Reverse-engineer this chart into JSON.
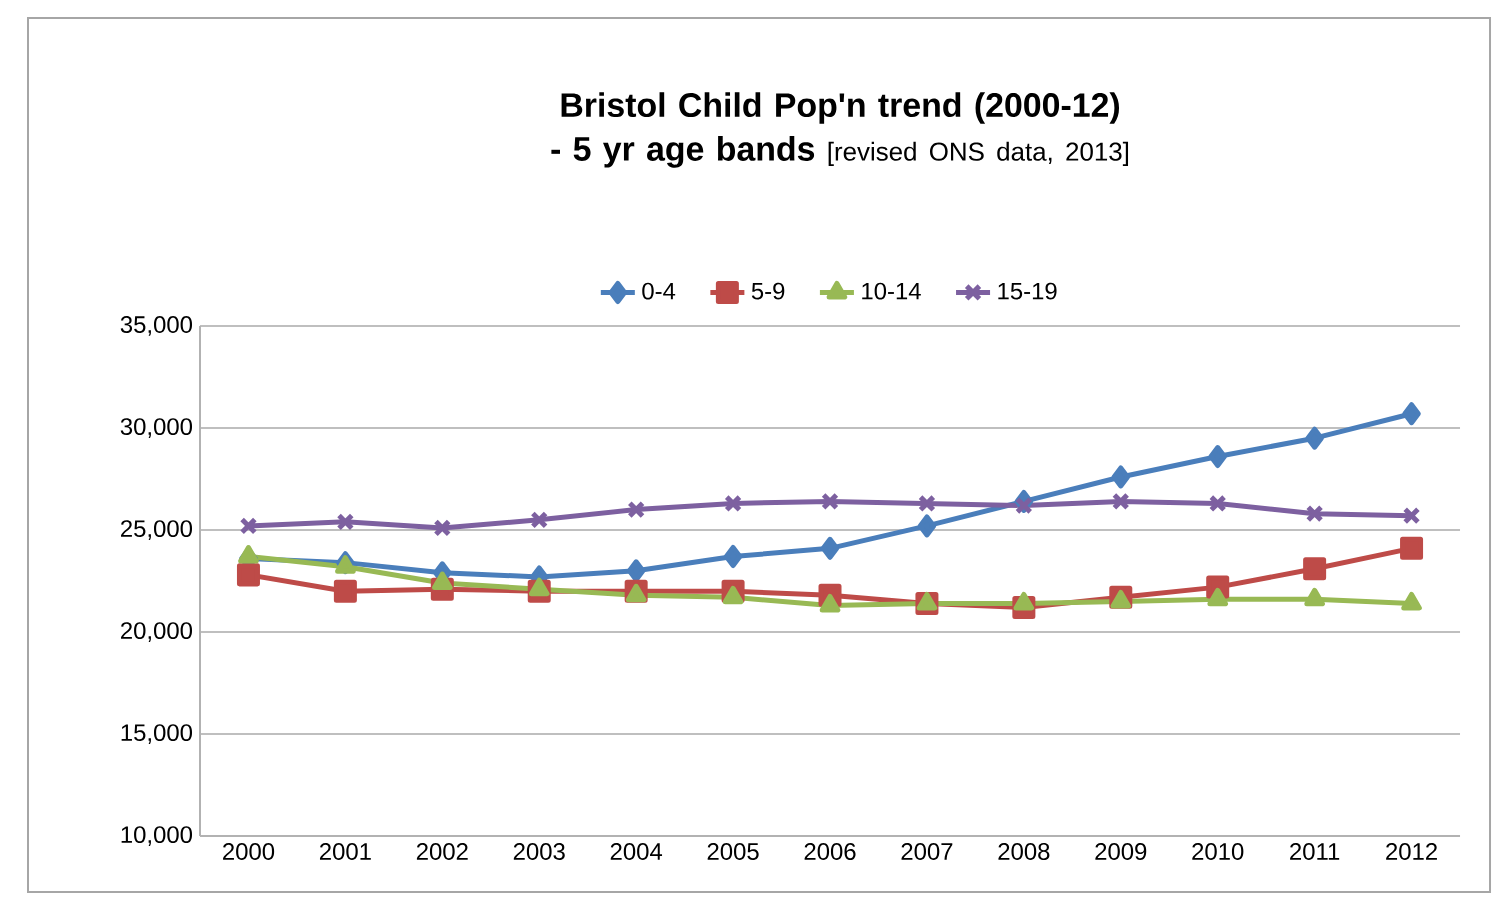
{
  "chart_data": {
    "type": "line",
    "title": "Bristol Child Pop'n trend (2000-12) - 5 yr age bands",
    "subtitle": "[revised ONS data, 2013]",
    "categories": [
      "2000",
      "2001",
      "2002",
      "2003",
      "2004",
      "2005",
      "2006",
      "2007",
      "2008",
      "2009",
      "2010",
      "2011",
      "2012"
    ],
    "series": [
      {
        "name": "0-4",
        "color": "#4a7ebb",
        "marker": "diamond",
        "values": [
          23600,
          23400,
          22900,
          22700,
          23000,
          23700,
          24100,
          25200,
          26400,
          27600,
          28600,
          29500,
          30700
        ]
      },
      {
        "name": "5-9",
        "color": "#be4b48",
        "marker": "square",
        "values": [
          22800,
          22000,
          22100,
          22000,
          22000,
          22000,
          21800,
          21400,
          21200,
          21700,
          22200,
          23100,
          24100
        ]
      },
      {
        "name": "10-14",
        "color": "#98b954",
        "marker": "triangle",
        "values": [
          23700,
          23200,
          22400,
          22100,
          21800,
          21700,
          21300,
          21400,
          21400,
          21500,
          21600,
          21600,
          21400
        ]
      },
      {
        "name": "15-19",
        "color": "#7d60a0",
        "marker": "cross",
        "values": [
          25200,
          25400,
          25100,
          25500,
          26000,
          26300,
          26400,
          26300,
          26200,
          26400,
          26300,
          25800,
          25700
        ]
      }
    ],
    "ylim": [
      10000,
      35000
    ],
    "yticks": [
      {
        "value": 10000,
        "label": "10,000"
      },
      {
        "value": 15000,
        "label": "15,000"
      },
      {
        "value": 20000,
        "label": "20,000"
      },
      {
        "value": 25000,
        "label": "25,000"
      },
      {
        "value": 30000,
        "label": "30,000"
      },
      {
        "value": 35000,
        "label": "35,000"
      }
    ],
    "grid": "y",
    "legend": "top",
    "line_style": "solid"
  }
}
